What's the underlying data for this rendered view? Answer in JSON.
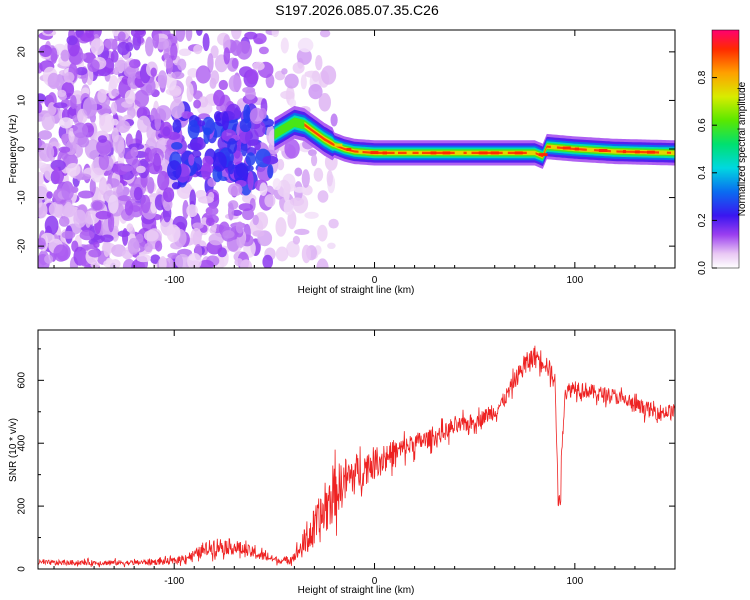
{
  "chart_data": [
    {
      "type": "heatmap",
      "title": "S197.2026.085.07.35.C26",
      "xlabel": "Height of straight line (km)",
      "ylabel": "Frequency (Hz)",
      "xlim": [
        -168,
        150
      ],
      "ylim": [
        -24.5,
        24.5
      ],
      "xticks": [
        -100,
        0,
        100
      ],
      "yticks": [
        -20,
        -10,
        0,
        10,
        20
      ],
      "colorbar": {
        "label": "Normalized spectral amplitude",
        "range": [
          0,
          1
        ],
        "ticks": [
          0.0,
          0.2,
          0.4,
          0.6,
          0.8
        ],
        "tick_labels": [
          "0.0",
          "0.2",
          "0.4",
          "0.6",
          "0.8"
        ]
      },
      "ridge": {
        "description": "spectral ridge of carrier frequency vs height",
        "x": [
          -50,
          -44,
          -40,
          -35,
          -30,
          -25,
          -20,
          -15,
          -10,
          0,
          20,
          40,
          60,
          80,
          84,
          86,
          100,
          120,
          150
        ],
        "freq": [
          3,
          4.5,
          5.5,
          5,
          3.5,
          2,
          0.8,
          0,
          -0.5,
          -0.8,
          -0.8,
          -0.8,
          -0.8,
          -0.8,
          -1.5,
          0.5,
          0,
          -0.5,
          -0.8
        ]
      },
      "noise_region": {
        "x_from": -168,
        "x_to": -52
      },
      "transition_region": {
        "x_from": -52,
        "x_to": -20
      }
    },
    {
      "type": "line",
      "xlabel": "Height of straight line (km)",
      "ylabel": "SNR (10 * v/v)",
      "xlim": [
        -168,
        150
      ],
      "ylim": [
        0,
        760
      ],
      "xticks": [
        -100,
        0,
        100
      ],
      "yticks": [
        0,
        200,
        400,
        600
      ],
      "series": [
        {
          "name": "SNR",
          "color": "#ee2222",
          "envelope_x": [
            -168,
            -120,
            -100,
            -90,
            -80,
            -70,
            -60,
            -50,
            -45,
            -40,
            -35,
            -30,
            -25,
            -20,
            -15,
            -10,
            -5,
            0,
            10,
            20,
            30,
            40,
            50,
            60,
            65,
            70,
            75,
            80,
            85,
            90,
            92,
            95,
            100,
            110,
            120,
            130,
            140,
            150
          ],
          "envelope_mean": [
            20,
            20,
            25,
            45,
            75,
            70,
            50,
            30,
            25,
            40,
            80,
            130,
            180,
            240,
            280,
            300,
            320,
            340,
            370,
            400,
            420,
            450,
            470,
            500,
            540,
            600,
            650,
            680,
            660,
            600,
            200,
            560,
            580,
            560,
            550,
            520,
            500,
            500
          ],
          "envelope_spread": [
            15,
            15,
            20,
            30,
            50,
            45,
            35,
            20,
            15,
            30,
            80,
            120,
            150,
            150,
            140,
            120,
            100,
            90,
            70,
            60,
            50,
            50,
            45,
            45,
            45,
            50,
            60,
            60,
            60,
            60,
            20,
            50,
            50,
            45,
            45,
            45,
            45,
            45
          ]
        }
      ]
    }
  ]
}
